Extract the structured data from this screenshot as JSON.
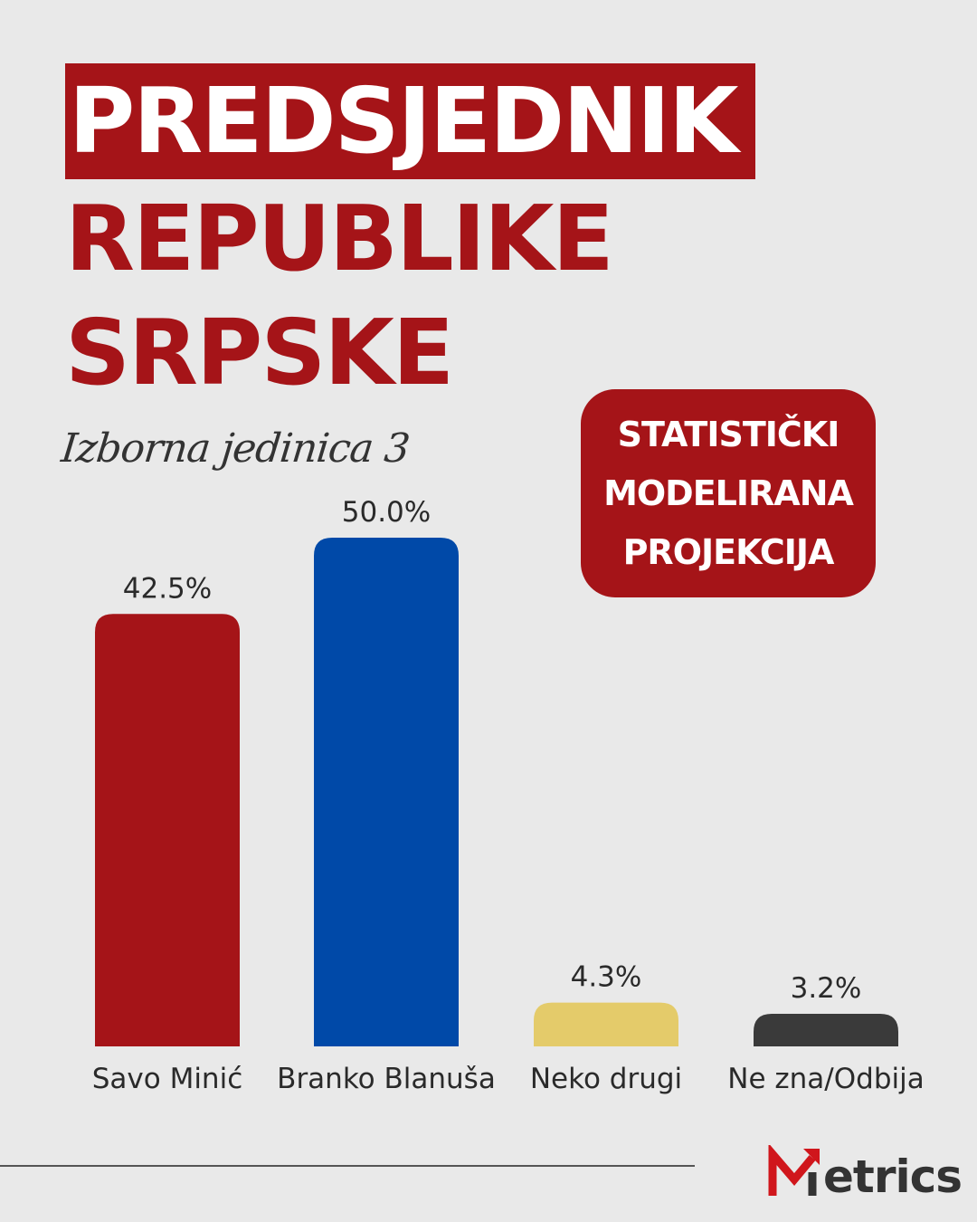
{
  "title": {
    "line1": "PREDSJEDNIK",
    "line2": "REPUBLIKE",
    "line3": "SRPSKE"
  },
  "subtitle": "Izborna jedinica 3",
  "badge": {
    "line1": "STATISTIČKI",
    "line2": "MODELIRANA",
    "line3": "PROJEKCIJA"
  },
  "logo": {
    "text": "etrics",
    "icon": "metrics-m-arrow-icon"
  },
  "colors": {
    "brand": "#a51418",
    "background": "#e9e9e9"
  },
  "chart_data": {
    "type": "bar",
    "categories": [
      "Savo Minić",
      "Branko Blanuša",
      "Neko drugi",
      "Ne zna/Odbija"
    ],
    "values": [
      42.5,
      50.0,
      4.3,
      3.2
    ],
    "value_labels": [
      "42.5%",
      "50.0%",
      "4.3%",
      "3.2%"
    ],
    "colors": [
      "#a51418",
      "#0049a8",
      "#e4cb6a",
      "#3a3a3a"
    ],
    "ylim": [
      0,
      50.0
    ],
    "grid": false,
    "legend": "none"
  }
}
